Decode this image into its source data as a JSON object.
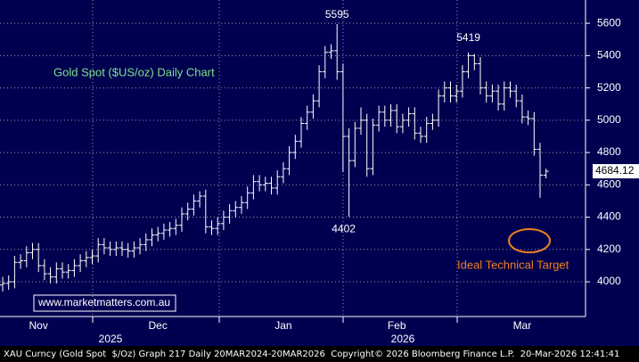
{
  "chart_data": {
    "type": "ohlc",
    "title": "Gold Spot ($US/oz) Daily Chart",
    "watermark": "www.marketmatters.com.au",
    "annotation": "Ideal Technical Target",
    "footer": "XAU Curncy (Gold Spot  $/Oz) Graph 217 Daily 20MAR2024-20MAR2026  Copyright© 2026 Bloomberg Finance L.P.  20-Mar-2026 12:41:41",
    "categories": [
      null,
      null,
      null,
      null,
      null,
      null,
      "Nov",
      null,
      null,
      null,
      null,
      null,
      null,
      null,
      null,
      null,
      null,
      null,
      null,
      null,
      null,
      null,
      null,
      null,
      null,
      null,
      "Dec",
      null,
      null,
      null,
      null,
      null,
      null,
      null,
      null,
      null,
      null,
      null,
      null,
      null,
      null,
      null,
      null,
      null,
      null,
      null,
      null,
      "Jan",
      null,
      null,
      null,
      null,
      null,
      null,
      null,
      null,
      null,
      null,
      null,
      null,
      null,
      null,
      null,
      null,
      null,
      null,
      "Feb",
      null,
      null,
      null,
      null,
      null,
      null,
      null,
      null,
      null,
      null,
      null,
      null,
      null,
      null,
      null,
      null,
      null,
      null,
      null,
      null,
      "Mar",
      null,
      null,
      null,
      null
    ],
    "year_labels": [
      "2025",
      "2026"
    ],
    "series": [
      {
        "color": "#ffffff",
        "open": [
          3980,
          3990,
          4000,
          4120,
          4130,
          4180,
          4200,
          4100,
          4050,
          4030,
          4080,
          4060,
          4070,
          4100,
          4130,
          4150,
          4160,
          4230,
          4210,
          4200,
          4210,
          4200,
          4190,
          4210,
          4230,
          4260,
          4290,
          4300,
          4320,
          4330,
          4350,
          4420,
          4450,
          4500,
          4530,
          4340,
          4330,
          4360,
          4400,
          4440,
          4460,
          4490,
          4550,
          4620,
          4600,
          4610,
          4580,
          4650,
          4700,
          4800,
          4870,
          4980,
          5050,
          5120,
          5300,
          5420,
          5430,
          5300,
          4900,
          4750,
          4950,
          5000,
          4700,
          4970,
          5050,
          5000,
          5060,
          4960,
          5000,
          5040,
          4920,
          4900,
          4980,
          5000,
          5150,
          5200,
          5150,
          5180,
          5300,
          5400,
          5350,
          5200,
          5150,
          5180,
          5100,
          5200,
          5180,
          5120,
          5020,
          5010,
          4820,
          4660
        ],
        "high": [
          4030,
          4040,
          4160,
          4170,
          4220,
          4240,
          4240,
          4140,
          4090,
          4120,
          4120,
          4110,
          4140,
          4170,
          4190,
          4200,
          4270,
          4270,
          4250,
          4250,
          4250,
          4240,
          4250,
          4270,
          4300,
          4330,
          4340,
          4360,
          4370,
          4390,
          4460,
          4490,
          4540,
          4560,
          4570,
          4380,
          4400,
          4440,
          4480,
          4500,
          4530,
          4590,
          4660,
          4660,
          4650,
          4650,
          4690,
          4740,
          4840,
          4910,
          5020,
          5090,
          5160,
          5340,
          5460,
          5470,
          5595,
          5350,
          4950,
          4990,
          5080,
          5040,
          5010,
          5090,
          5090,
          5100,
          5100,
          5040,
          5080,
          5080,
          4960,
          5020,
          5040,
          5190,
          5240,
          5240,
          5220,
          5340,
          5419,
          5410,
          5390,
          5240,
          5220,
          5220,
          5240,
          5240,
          5220,
          5160,
          5060,
          5050,
          4860,
          4700
        ],
        "low": [
          3940,
          3950,
          3960,
          4080,
          4090,
          4140,
          4060,
          4010,
          3990,
          3990,
          4020,
          4020,
          4030,
          4060,
          4090,
          4110,
          4120,
          4170,
          4160,
          4160,
          4160,
          4150,
          4150,
          4170,
          4190,
          4220,
          4250,
          4260,
          4280,
          4290,
          4310,
          4380,
          4410,
          4460,
          4300,
          4290,
          4290,
          4320,
          4360,
          4400,
          4420,
          4450,
          4510,
          4560,
          4560,
          4540,
          4540,
          4610,
          4660,
          4760,
          4830,
          4940,
          5010,
          5080,
          5260,
          5380,
          5250,
          4680,
          4402,
          4710,
          4910,
          4650,
          4660,
          4930,
          4960,
          4960,
          4920,
          4920,
          4960,
          4880,
          4860,
          4860,
          4940,
          4960,
          5110,
          5110,
          5110,
          5140,
          5260,
          5310,
          5160,
          5110,
          5110,
          5060,
          5060,
          5140,
          5080,
          4980,
          4970,
          4780,
          4520,
          4640
        ],
        "close": [
          3990,
          4000,
          4120,
          4130,
          4180,
          4200,
          4100,
          4050,
          4030,
          4080,
          4060,
          4070,
          4100,
          4130,
          4150,
          4160,
          4230,
          4210,
          4200,
          4210,
          4200,
          4190,
          4210,
          4230,
          4260,
          4290,
          4300,
          4320,
          4330,
          4350,
          4420,
          4450,
          4500,
          4530,
          4340,
          4330,
          4360,
          4400,
          4440,
          4460,
          4490,
          4550,
          4620,
          4600,
          4610,
          4580,
          4650,
          4700,
          4800,
          4870,
          4980,
          5050,
          5120,
          5300,
          5420,
          5430,
          5300,
          4900,
          4750,
          4950,
          5000,
          4700,
          4970,
          5050,
          5000,
          5060,
          4960,
          5000,
          5040,
          4920,
          4900,
          4980,
          5000,
          5150,
          5200,
          5150,
          5180,
          5300,
          5400,
          5350,
          5200,
          5150,
          5180,
          5100,
          5200,
          5180,
          5120,
          5020,
          5010,
          4820,
          4660,
          4684
        ]
      }
    ],
    "last_price": 4684.12,
    "ylim": [
      3785,
      5744
    ],
    "yticks": [
      4000,
      4200,
      4400,
      4600,
      4800,
      5000,
      5200,
      5400,
      5600
    ],
    "grid": true
  }
}
